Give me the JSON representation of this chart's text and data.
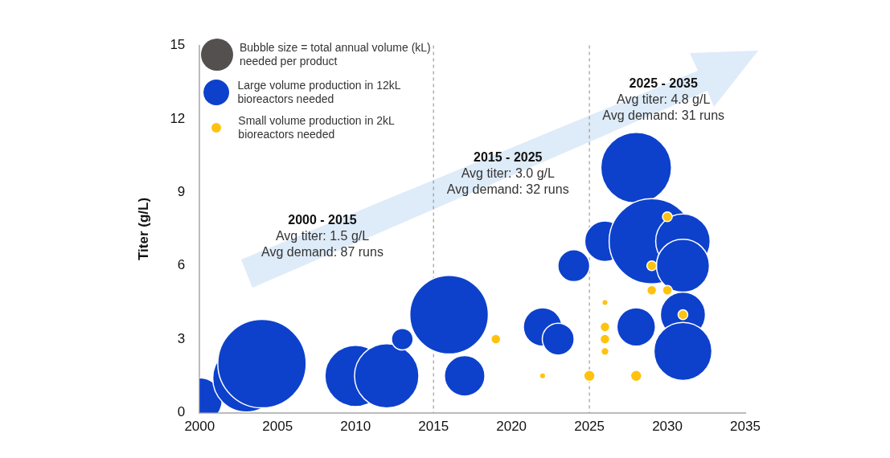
{
  "chart_data": {
    "type": "bubble",
    "ylabel": "Titer (g/L)",
    "legend_title": "Bubble size = total annual volume (kL) needed per product",
    "legend": "top left",
    "marker": "circle",
    "grid": false,
    "xlim": [
      2000,
      2035
    ],
    "xticks": [
      2000,
      2005,
      2010,
      2015,
      2020,
      2025,
      2030,
      2035
    ],
    "ylim": [
      0,
      15
    ],
    "yticks": [
      0,
      3,
      6,
      9,
      12,
      15
    ],
    "series": [
      {
        "name": "Large volume production in 12kL bioreactors needed",
        "color": "#0d41cc",
        "x": [
          2000,
          2003,
          2004,
          2010,
          2012,
          2013,
          2016,
          2017,
          2022,
          2023,
          2024,
          2028,
          2026,
          2029,
          2031,
          2031,
          2031,
          2028,
          2031
        ],
        "values": [
          0.5,
          1.4,
          2,
          1.5,
          1.5,
          3,
          4,
          1.5,
          3.5,
          3,
          6,
          10,
          7,
          7,
          7,
          6,
          4,
          3.5,
          2.5
        ],
        "sizes": [
          0.26,
          0.58,
          1,
          0.48,
          0.53,
          0.06,
          0.79,
          0.21,
          0.19,
          0.13,
          0.13,
          0.64,
          0.21,
          0.93,
          0.38,
          0.36,
          0.26,
          0.19,
          0.43
        ]
      },
      {
        "name": "Small volume production in 2kL bioreactors needed",
        "color": "#ffc20e",
        "x": [
          2019,
          2022,
          2025,
          2026,
          2026,
          2026,
          2026,
          2028,
          2029,
          2029,
          2030,
          2030,
          2031
        ],
        "values": [
          3,
          1.5,
          1.5,
          4.5,
          3.5,
          3,
          2.5,
          1.5,
          6,
          5,
          5,
          8,
          4
        ],
        "sizes": [
          0.012,
          0.003,
          0.016,
          0.003,
          0.012,
          0.012,
          0.008,
          0.016,
          0.012,
          0.012,
          0.012,
          0.012,
          0.012
        ]
      }
    ],
    "ref_lines": [
      {
        "axis": "x",
        "value": 2015,
        "color": "#888888",
        "line_style": "dashed"
      },
      {
        "axis": "x",
        "value": 2025,
        "color": "#888888",
        "line_style": "dashed"
      }
    ],
    "annotations": [
      "2000 - 2015\nAvg titer: 1.5 g/L\nAvg demand: 87 runs",
      "2015 - 2025\nAvg titer: 3.0 g/L\nAvg demand: 32 runs",
      "2025 - 2035\nAvg titer: 4.8 g/L\nAvg demand: 31 runs"
    ]
  }
}
